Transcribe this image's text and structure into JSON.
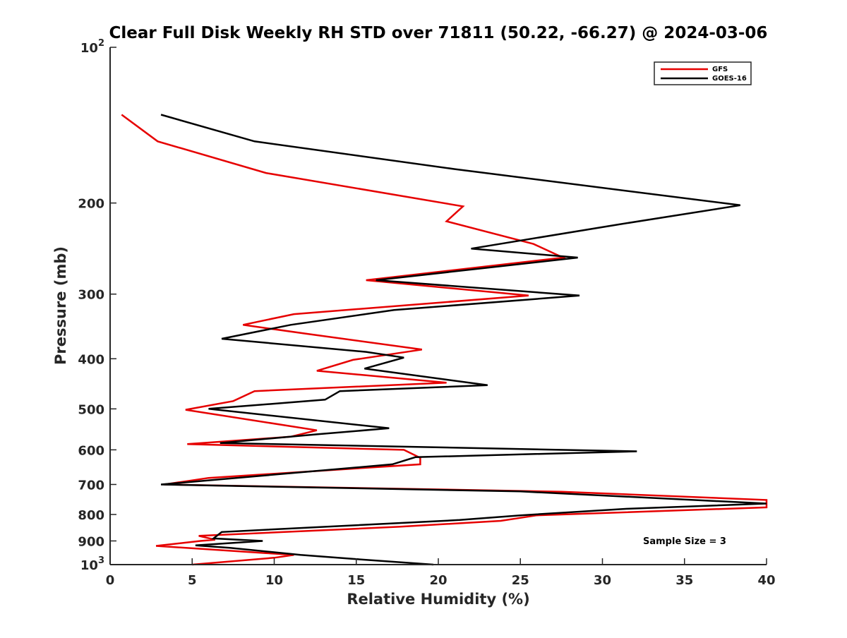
{
  "chart_data": {
    "type": "line",
    "title": "Clear Full Disk Weekly RH STD over 71811 (50.22, -66.27) @ 2024-03-06",
    "xlabel": "Relative Humidity (%)",
    "ylabel": "Pressure (mb)",
    "xlim": [
      0,
      40
    ],
    "ylim": [
      100,
      1000
    ],
    "y_scale": "log",
    "y_reversed": true,
    "x_ticks": [
      "0",
      "5",
      "10",
      "15",
      "20",
      "25",
      "30",
      "35",
      "40"
    ],
    "y_ticks": [
      {
        "value": 100,
        "base": "10",
        "exp": "2"
      },
      {
        "value": 200,
        "label": "200"
      },
      {
        "value": 300,
        "label": "300"
      },
      {
        "value": 400,
        "label": "400"
      },
      {
        "value": 500,
        "label": "500"
      },
      {
        "value": 600,
        "label": "600"
      },
      {
        "value": 700,
        "label": "700"
      },
      {
        "value": 800,
        "label": "800"
      },
      {
        "value": 900,
        "label": "900"
      },
      {
        "value": 1000,
        "base": "10",
        "exp": "3"
      }
    ],
    "grid": false,
    "legend_position": "top-right",
    "annotation": "Sample Size = 3",
    "series": [
      {
        "name": "GFS",
        "color": "#e60000",
        "points": [
          [
            0.7,
            135
          ],
          [
            2.9,
            152
          ],
          [
            9.5,
            175
          ],
          [
            21.5,
            203
          ],
          [
            20.5,
            217
          ],
          [
            25.8,
            240
          ],
          [
            27.6,
            255
          ],
          [
            15.6,
            282
          ],
          [
            25.5,
            302
          ],
          [
            11.2,
            328
          ],
          [
            8.1,
            344
          ],
          [
            12.0,
            358
          ],
          [
            19.0,
            384
          ],
          [
            14.8,
            402
          ],
          [
            12.6,
            422
          ],
          [
            20.5,
            445
          ],
          [
            8.8,
            462
          ],
          [
            7.5,
            483
          ],
          [
            4.6,
            502
          ],
          [
            12.6,
            550
          ],
          [
            11.0,
            566
          ],
          [
            4.7,
            585
          ],
          [
            17.9,
            600
          ],
          [
            18.9,
            622
          ],
          [
            18.9,
            640
          ],
          [
            6.0,
            680
          ],
          [
            3.3,
            700
          ],
          [
            27.5,
            723
          ],
          [
            40.0,
            750
          ],
          [
            40.0,
            775
          ],
          [
            26.0,
            803
          ],
          [
            23.8,
            823
          ],
          [
            17.6,
            845
          ],
          [
            5.4,
            880
          ],
          [
            6.4,
            895
          ],
          [
            5.5,
            900
          ],
          [
            2.8,
            920
          ],
          [
            9.5,
            950
          ],
          [
            11.2,
            958
          ],
          [
            10.0,
            970
          ],
          [
            5.0,
            1000
          ]
        ]
      },
      {
        "name": "GOES-16",
        "color": "#000000",
        "points": [
          [
            3.1,
            135
          ],
          [
            8.8,
            152
          ],
          [
            21.0,
            172
          ],
          [
            38.4,
            202
          ],
          [
            31.0,
            220
          ],
          [
            22.0,
            245
          ],
          [
            28.5,
            255
          ],
          [
            16.2,
            282
          ],
          [
            28.6,
            302
          ],
          [
            17.3,
            322
          ],
          [
            11.0,
            344
          ],
          [
            6.8,
            366
          ],
          [
            15.6,
            388
          ],
          [
            17.9,
            398
          ],
          [
            15.5,
            418
          ],
          [
            23.0,
            450
          ],
          [
            14.0,
            462
          ],
          [
            13.1,
            480
          ],
          [
            6.0,
            500
          ],
          [
            17.0,
            545
          ],
          [
            12.6,
            560
          ],
          [
            6.7,
            582
          ],
          [
            32.1,
            604
          ],
          [
            18.6,
            620
          ],
          [
            17.2,
            640
          ],
          [
            3.1,
            700
          ],
          [
            25.0,
            722
          ],
          [
            40.0,
            762
          ],
          [
            31.5,
            780
          ],
          [
            25.0,
            803
          ],
          [
            21.3,
            820
          ],
          [
            6.8,
            865
          ],
          [
            6.3,
            890
          ],
          [
            9.3,
            900
          ],
          [
            5.2,
            918
          ],
          [
            7.3,
            928
          ],
          [
            11.6,
            958
          ],
          [
            14.8,
            975
          ],
          [
            19.7,
            1000
          ]
        ]
      }
    ]
  }
}
